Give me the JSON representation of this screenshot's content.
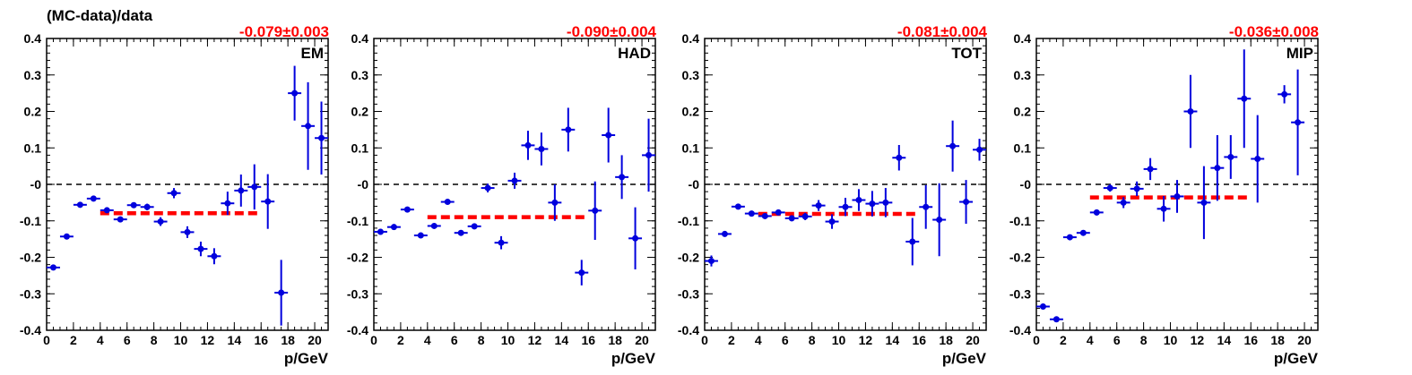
{
  "figure": {
    "ylabel": "(MC-data)/data",
    "xlabel": "p/GeV",
    "colors": {
      "points": "#0000dd",
      "fit": "#ff0000",
      "zero_line": "#000000",
      "fit_label": "#ff0000"
    }
  },
  "chart_data": [
    {
      "type": "scatter",
      "panel_label": "EM",
      "fit_result": "-0.079±0.003",
      "fit_value": -0.079,
      "fit_range": [
        4,
        16
      ],
      "xlabel": "p/GeV",
      "ylabel": "(MC-data)/data",
      "xlim": [
        0,
        21
      ],
      "ylim": [
        -0.4,
        0.4
      ],
      "x_ticks": [
        "0",
        "2",
        "4",
        "6",
        "8",
        "10",
        "12",
        "14",
        "16",
        "18",
        "20"
      ],
      "y_ticks": [
        "-0.4",
        "-0.3",
        "-0.2",
        "-0.1",
        "-0",
        "0.1",
        "0.2",
        "0.3",
        "0.4"
      ],
      "grid": false,
      "series": [
        {
          "x": [
            0.5,
            1.5,
            2.5,
            3.5,
            4.5,
            5.5,
            6.5,
            7.5,
            8.5,
            9.5,
            10.5,
            11.5,
            12.5,
            13.5,
            14.5,
            15.5,
            16.5,
            17.5,
            18.5,
            19.5,
            20.5
          ],
          "y": [
            -0.228,
            -0.143,
            -0.056,
            -0.039,
            -0.071,
            -0.096,
            -0.057,
            -0.062,
            -0.102,
            -0.024,
            -0.131,
            -0.177,
            -0.197,
            -0.052,
            -0.017,
            -0.007,
            -0.047,
            -0.297,
            0.25,
            0.16,
            0.127
          ],
          "yerr": [
            0.005,
            0.004,
            0.004,
            0.004,
            0.004,
            0.006,
            0.006,
            0.009,
            0.012,
            0.014,
            0.016,
            0.02,
            0.022,
            0.032,
            0.044,
            0.062,
            0.075,
            0.09,
            0.075,
            0.12,
            0.1
          ]
        }
      ]
    },
    {
      "type": "scatter",
      "panel_label": "HAD",
      "fit_result": "-0.090±0.004",
      "fit_value": -0.09,
      "fit_range": [
        4,
        16
      ],
      "xlabel": "p/GeV",
      "xlim": [
        0,
        21
      ],
      "ylim": [
        -0.4,
        0.4
      ],
      "x_ticks": [
        "0",
        "2",
        "4",
        "6",
        "8",
        "10",
        "12",
        "14",
        "16",
        "18",
        "20"
      ],
      "y_ticks": [
        "-0.4",
        "-0.3",
        "-0.2",
        "-0.1",
        "-0",
        "0.1",
        "0.2",
        "0.3",
        "0.4"
      ],
      "grid": false,
      "series": [
        {
          "x": [
            0.5,
            1.5,
            2.5,
            3.5,
            4.5,
            5.5,
            6.5,
            7.5,
            8.5,
            9.5,
            10.5,
            11.5,
            12.5,
            13.5,
            14.5,
            15.5,
            16.5,
            17.5,
            18.5,
            19.5,
            20.5
          ],
          "y": [
            -0.13,
            -0.117,
            -0.069,
            -0.14,
            -0.114,
            -0.048,
            -0.133,
            -0.115,
            -0.01,
            -0.16,
            0.01,
            0.107,
            0.097,
            -0.05,
            0.15,
            -0.242,
            -0.072,
            0.135,
            0.02,
            -0.148,
            0.08
          ],
          "yerr": [
            0.008,
            0.004,
            0.004,
            0.004,
            0.004,
            0.004,
            0.005,
            0.008,
            0.012,
            0.018,
            0.022,
            0.04,
            0.045,
            0.05,
            0.06,
            0.035,
            0.08,
            0.075,
            0.06,
            0.085,
            0.1
          ]
        }
      ]
    },
    {
      "type": "scatter",
      "panel_label": "TOT",
      "fit_result": "-0.081±0.004",
      "fit_value": -0.081,
      "fit_range": [
        4,
        16
      ],
      "xlabel": "p/GeV",
      "xlim": [
        0,
        21
      ],
      "ylim": [
        -0.4,
        0.4
      ],
      "x_ticks": [
        "0",
        "2",
        "4",
        "6",
        "8",
        "10",
        "12",
        "14",
        "16",
        "18",
        "20"
      ],
      "y_ticks": [
        "-0.4",
        "-0.3",
        "-0.2",
        "-0.1",
        "-0",
        "0.1",
        "0.2",
        "0.3",
        "0.4"
      ],
      "grid": false,
      "series": [
        {
          "x": [
            0.5,
            1.5,
            2.5,
            3.5,
            4.5,
            5.5,
            6.5,
            7.5,
            8.5,
            9.5,
            10.5,
            11.5,
            12.5,
            13.5,
            14.5,
            15.5,
            16.5,
            17.5,
            18.5,
            19.5,
            20.5
          ],
          "y": [
            -0.21,
            -0.136,
            -0.061,
            -0.08,
            -0.087,
            -0.077,
            -0.093,
            -0.088,
            -0.058,
            -0.102,
            -0.062,
            -0.043,
            -0.053,
            -0.05,
            0.073,
            -0.157,
            -0.062,
            -0.097,
            0.105,
            -0.048,
            0.095
          ],
          "yerr": [
            0.015,
            0.006,
            0.004,
            0.004,
            0.004,
            0.004,
            0.008,
            0.01,
            0.015,
            0.02,
            0.025,
            0.03,
            0.035,
            0.04,
            0.035,
            0.065,
            0.06,
            0.1,
            0.07,
            0.06,
            0.03
          ]
        }
      ]
    },
    {
      "type": "scatter",
      "panel_label": "MIP",
      "fit_result": "-0.036±0.008",
      "fit_value": -0.036,
      "fit_range": [
        4,
        16
      ],
      "xlabel": "p/GeV",
      "xlim": [
        0,
        21
      ],
      "ylim": [
        -0.4,
        0.4
      ],
      "x_ticks": [
        "0",
        "2",
        "4",
        "6",
        "8",
        "10",
        "12",
        "14",
        "16",
        "18",
        "20"
      ],
      "y_ticks": [
        "-0.4",
        "-0.3",
        "-0.2",
        "-0.1",
        "-0",
        "0.1",
        "0.2",
        "0.3",
        "0.4"
      ],
      "grid": false,
      "series": [
        {
          "x": [
            0.5,
            1.5,
            2.5,
            3.5,
            4.5,
            5.5,
            6.5,
            7.5,
            8.5,
            9.5,
            10.5,
            11.5,
            12.5,
            13.5,
            14.5,
            15.5,
            16.5,
            18.5,
            19.5
          ],
          "y": [
            -0.335,
            -0.37,
            -0.145,
            -0.133,
            -0.077,
            -0.01,
            -0.05,
            -0.012,
            0.042,
            -0.067,
            -0.033,
            0.2,
            -0.05,
            0.045,
            0.075,
            0.235,
            0.07,
            0.247,
            0.17
          ],
          "yerr": [
            0.008,
            0.006,
            0.004,
            0.006,
            0.008,
            0.01,
            0.015,
            0.02,
            0.03,
            0.035,
            0.045,
            0.1,
            0.1,
            0.09,
            0.06,
            0.135,
            0.12,
            0.025,
            0.145
          ]
        }
      ]
    }
  ]
}
